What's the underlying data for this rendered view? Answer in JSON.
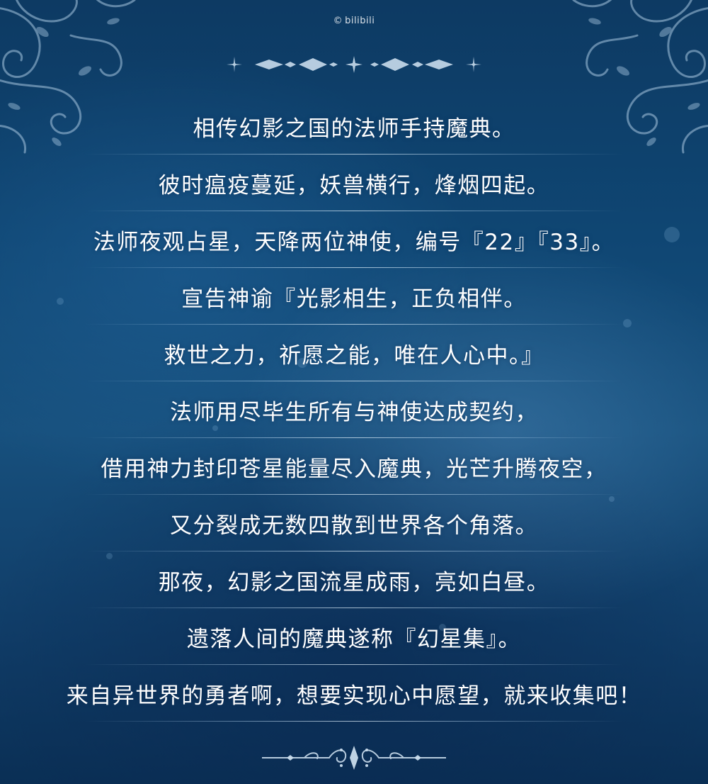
{
  "watermark": {
    "symbol": "©",
    "brand": "bilibili"
  },
  "ornaments": {
    "top": "top-ornament-divider",
    "bottom": "bottom-ornament-flourish",
    "corners": "floral-corner-pattern"
  },
  "colors": {
    "background_top": "#0d3a63",
    "background_mid": "#17507d",
    "background_bottom": "#0a2f55",
    "text": "#ffffff"
  },
  "story": {
    "lines": [
      "相传幻影之国的法师手持魔典。",
      "彼时瘟疫蔓延，妖兽横行，烽烟四起。",
      "法师夜观占星，天降两位神使，编号『22』『33』。",
      "宣告神谕『光影相生，正负相伴。",
      "救世之力，祈愿之能，唯在人心中。』",
      "法师用尽毕生所有与神使达成契约，",
      "借用神力封印苍星能量尽入魔典，光芒升腾夜空，",
      "又分裂成无数四散到世界各个角落。",
      "那夜，幻影之国流星成雨，亮如白昼。",
      "遗落人间的魔典遂称『幻星集』。",
      "来自异世界的勇者啊，想要实现心中愿望，就来收集吧！"
    ]
  }
}
